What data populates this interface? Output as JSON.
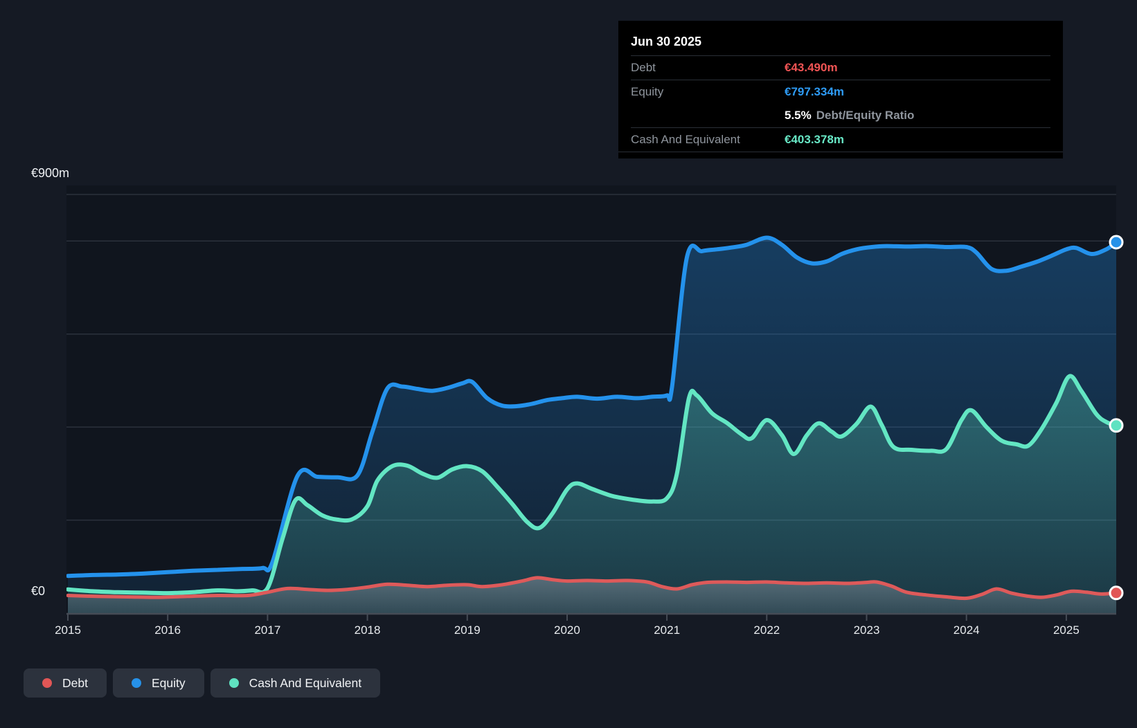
{
  "tooltip": {
    "title": "Jun 30 2025",
    "debt_label": "Debt",
    "debt_value": "€43.490m",
    "equity_label": "Equity",
    "equity_value": "€797.334m",
    "ratio_value": "5.5%",
    "ratio_label": "Debt/Equity Ratio",
    "cash_label": "Cash And Equivalent",
    "cash_value": "€403.378m"
  },
  "y_axis": {
    "top_label": "€900m",
    "zero_label": "€0"
  },
  "x_axis": {
    "years": [
      "2015",
      "2016",
      "2017",
      "2018",
      "2019",
      "2020",
      "2021",
      "2022",
      "2023",
      "2024",
      "2025"
    ]
  },
  "legend": {
    "items": [
      {
        "key": "debt",
        "label": "Debt"
      },
      {
        "key": "equity",
        "label": "Equity"
      },
      {
        "key": "cash",
        "label": "Cash And Equivalent"
      }
    ]
  },
  "colors": {
    "debt": "#de5a5a",
    "equity": "#2492ec",
    "cash": "#63e6c3",
    "debt_dot": "#e15656",
    "equity_dot": "#2691e8",
    "cash_dot": "#5fe2c1",
    "grid": "#2b313c",
    "axis": "#454b55",
    "plot_bg": "#10151e"
  },
  "chart_data": {
    "type": "area",
    "unit": "EUR millions",
    "x_min": 2015,
    "x_max": 2025.5,
    "y_min": 0,
    "y_max": 900,
    "gridline_values": [
      900,
      800,
      600,
      400,
      200
    ],
    "grid_on": true,
    "legend_position": "bottom-left",
    "series": [
      {
        "name": "Equity",
        "key": "equity",
        "final_value": 797.334,
        "points": [
          [
            2015.0,
            80
          ],
          [
            2015.25,
            82
          ],
          [
            2015.5,
            83
          ],
          [
            2015.75,
            85
          ],
          [
            2016.0,
            88
          ],
          [
            2016.25,
            91
          ],
          [
            2016.5,
            93
          ],
          [
            2016.75,
            95
          ],
          [
            2016.95,
            97
          ],
          [
            2017.05,
            110
          ],
          [
            2017.3,
            295
          ],
          [
            2017.5,
            293
          ],
          [
            2017.7,
            292
          ],
          [
            2017.9,
            296
          ],
          [
            2018.05,
            390
          ],
          [
            2018.2,
            483
          ],
          [
            2018.35,
            487
          ],
          [
            2018.5,
            482
          ],
          [
            2018.65,
            478
          ],
          [
            2018.8,
            484
          ],
          [
            2018.95,
            494
          ],
          [
            2019.05,
            497
          ],
          [
            2019.2,
            462
          ],
          [
            2019.35,
            446
          ],
          [
            2019.5,
            445
          ],
          [
            2019.65,
            450
          ],
          [
            2019.8,
            458
          ],
          [
            2019.95,
            462
          ],
          [
            2020.1,
            465
          ],
          [
            2020.3,
            461
          ],
          [
            2020.5,
            465
          ],
          [
            2020.7,
            462
          ],
          [
            2020.85,
            465
          ],
          [
            2021.0,
            468
          ],
          [
            2021.05,
            485
          ],
          [
            2021.2,
            765
          ],
          [
            2021.35,
            778
          ],
          [
            2021.5,
            782
          ],
          [
            2021.65,
            786
          ],
          [
            2021.8,
            792
          ],
          [
            2022.0,
            807
          ],
          [
            2022.15,
            792
          ],
          [
            2022.3,
            765
          ],
          [
            2022.45,
            752
          ],
          [
            2022.6,
            756
          ],
          [
            2022.75,
            772
          ],
          [
            2022.9,
            782
          ],
          [
            2023.05,
            787
          ],
          [
            2023.2,
            789
          ],
          [
            2023.4,
            788
          ],
          [
            2023.6,
            789
          ],
          [
            2023.8,
            787
          ],
          [
            2024.0,
            787
          ],
          [
            2024.1,
            775
          ],
          [
            2024.25,
            740
          ],
          [
            2024.4,
            736
          ],
          [
            2024.55,
            745
          ],
          [
            2024.7,
            755
          ],
          [
            2024.85,
            768
          ],
          [
            2025.0,
            782
          ],
          [
            2025.1,
            785
          ],
          [
            2025.25,
            772
          ],
          [
            2025.4,
            782
          ],
          [
            2025.5,
            797.334
          ]
        ]
      },
      {
        "name": "Cash And Equivalent",
        "key": "cash",
        "final_value": 403.378,
        "points": [
          [
            2015.0,
            51
          ],
          [
            2015.25,
            47
          ],
          [
            2015.5,
            45
          ],
          [
            2015.75,
            44
          ],
          [
            2016.0,
            43
          ],
          [
            2016.25,
            45
          ],
          [
            2016.5,
            49
          ],
          [
            2016.7,
            47
          ],
          [
            2016.85,
            49
          ],
          [
            2017.0,
            54
          ],
          [
            2017.15,
            160
          ],
          [
            2017.28,
            243
          ],
          [
            2017.4,
            232
          ],
          [
            2017.55,
            210
          ],
          [
            2017.7,
            201
          ],
          [
            2017.85,
            202
          ],
          [
            2018.0,
            230
          ],
          [
            2018.1,
            285
          ],
          [
            2018.25,
            316
          ],
          [
            2018.4,
            317
          ],
          [
            2018.55,
            300
          ],
          [
            2018.7,
            291
          ],
          [
            2018.85,
            309
          ],
          [
            2019.0,
            316
          ],
          [
            2019.15,
            305
          ],
          [
            2019.3,
            272
          ],
          [
            2019.45,
            235
          ],
          [
            2019.6,
            196
          ],
          [
            2019.72,
            183
          ],
          [
            2019.85,
            213
          ],
          [
            2020.0,
            266
          ],
          [
            2020.1,
            279
          ],
          [
            2020.25,
            267
          ],
          [
            2020.45,
            252
          ],
          [
            2020.65,
            244
          ],
          [
            2020.85,
            240
          ],
          [
            2021.0,
            247
          ],
          [
            2021.1,
            300
          ],
          [
            2021.22,
            462
          ],
          [
            2021.3,
            468
          ],
          [
            2021.45,
            430
          ],
          [
            2021.6,
            409
          ],
          [
            2021.75,
            384
          ],
          [
            2021.85,
            376
          ],
          [
            2022.0,
            415
          ],
          [
            2022.15,
            383
          ],
          [
            2022.27,
            342
          ],
          [
            2022.4,
            382
          ],
          [
            2022.52,
            408
          ],
          [
            2022.65,
            390
          ],
          [
            2022.75,
            380
          ],
          [
            2022.9,
            407
          ],
          [
            2023.04,
            444
          ],
          [
            2023.15,
            405
          ],
          [
            2023.27,
            357
          ],
          [
            2023.45,
            351
          ],
          [
            2023.65,
            349
          ],
          [
            2023.8,
            353
          ],
          [
            2023.95,
            415
          ],
          [
            2024.05,
            436
          ],
          [
            2024.2,
            400
          ],
          [
            2024.35,
            371
          ],
          [
            2024.5,
            363
          ],
          [
            2024.62,
            360
          ],
          [
            2024.75,
            395
          ],
          [
            2024.9,
            452
          ],
          [
            2025.03,
            509
          ],
          [
            2025.15,
            478
          ],
          [
            2025.3,
            428
          ],
          [
            2025.4,
            411
          ],
          [
            2025.5,
            403.378
          ]
        ]
      },
      {
        "name": "Debt",
        "key": "debt",
        "final_value": 43.49,
        "points": [
          [
            2015.0,
            38
          ],
          [
            2015.3,
            36
          ],
          [
            2015.6,
            35
          ],
          [
            2015.9,
            34
          ],
          [
            2016.2,
            36
          ],
          [
            2016.5,
            38
          ],
          [
            2016.8,
            38
          ],
          [
            2017.0,
            45
          ],
          [
            2017.2,
            53
          ],
          [
            2017.4,
            51
          ],
          [
            2017.6,
            49
          ],
          [
            2017.8,
            51
          ],
          [
            2018.0,
            56
          ],
          [
            2018.2,
            62
          ],
          [
            2018.4,
            60
          ],
          [
            2018.6,
            57
          ],
          [
            2018.8,
            60
          ],
          [
            2019.0,
            61
          ],
          [
            2019.15,
            57
          ],
          [
            2019.35,
            61
          ],
          [
            2019.55,
            69
          ],
          [
            2019.7,
            76
          ],
          [
            2019.85,
            72
          ],
          [
            2020.0,
            69
          ],
          [
            2020.2,
            70
          ],
          [
            2020.4,
            69
          ],
          [
            2020.6,
            70
          ],
          [
            2020.8,
            67
          ],
          [
            2020.95,
            57
          ],
          [
            2021.1,
            52
          ],
          [
            2021.25,
            61
          ],
          [
            2021.4,
            66
          ],
          [
            2021.6,
            67
          ],
          [
            2021.8,
            66
          ],
          [
            2022.0,
            67
          ],
          [
            2022.2,
            65
          ],
          [
            2022.4,
            64
          ],
          [
            2022.6,
            65
          ],
          [
            2022.8,
            64
          ],
          [
            2023.0,
            66
          ],
          [
            2023.1,
            67
          ],
          [
            2023.25,
            58
          ],
          [
            2023.4,
            45
          ],
          [
            2023.6,
            39
          ],
          [
            2023.8,
            35
          ],
          [
            2024.0,
            32
          ],
          [
            2024.15,
            40
          ],
          [
            2024.3,
            52
          ],
          [
            2024.45,
            43
          ],
          [
            2024.6,
            37
          ],
          [
            2024.75,
            34
          ],
          [
            2024.9,
            39
          ],
          [
            2025.05,
            47
          ],
          [
            2025.2,
            45
          ],
          [
            2025.35,
            41
          ],
          [
            2025.5,
            43.49
          ]
        ]
      }
    ]
  }
}
